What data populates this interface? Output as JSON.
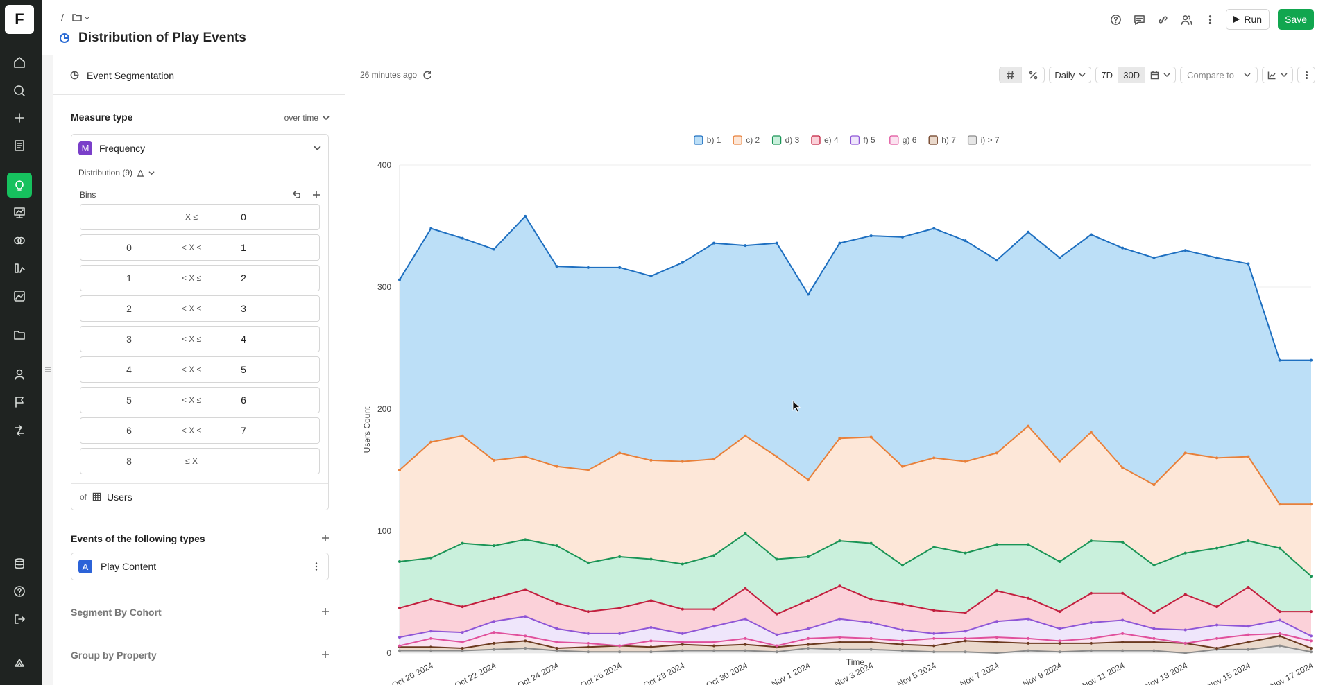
{
  "rail": {
    "logo": "F",
    "items": [
      {
        "icon": "home-icon"
      },
      {
        "icon": "search-icon"
      },
      {
        "icon": "plus-icon"
      },
      {
        "icon": "notebook-icon"
      },
      {
        "icon": "lightbulb-icon",
        "active": true
      },
      {
        "icon": "dashboard-icon"
      },
      {
        "icon": "overlap-circles-icon"
      },
      {
        "icon": "metrics-icon"
      },
      {
        "icon": "image-chart-icon"
      },
      {
        "icon": "folder-icon"
      },
      {
        "icon": "user-icon"
      },
      {
        "icon": "flag-icon"
      },
      {
        "icon": "experiment-icon"
      },
      {
        "icon": "database-icon"
      },
      {
        "icon": "help-icon"
      },
      {
        "icon": "logout-icon"
      },
      {
        "icon": "logo-mark-icon"
      }
    ]
  },
  "header": {
    "breadcrumb_sep": "/",
    "title": "Distribution of Play Events",
    "run_label": "Run",
    "save_label": "Save"
  },
  "panel": {
    "analysis_type": "Event Segmentation",
    "measure_type_label": "Measure type",
    "measure_mode": "over time",
    "measure_badge": "M",
    "measure": "Frequency",
    "distribution_label": "Distribution (9)",
    "bins_label": "Bins",
    "bins": [
      {
        "lo": "",
        "op": "X ≤",
        "hi": "0"
      },
      {
        "lo": "0",
        "op": "< X ≤",
        "hi": "1"
      },
      {
        "lo": "1",
        "op": "< X ≤",
        "hi": "2"
      },
      {
        "lo": "2",
        "op": "< X ≤",
        "hi": "3"
      },
      {
        "lo": "3",
        "op": "< X ≤",
        "hi": "4"
      },
      {
        "lo": "4",
        "op": "< X ≤",
        "hi": "5"
      },
      {
        "lo": "5",
        "op": "< X ≤",
        "hi": "6"
      },
      {
        "lo": "6",
        "op": "< X ≤",
        "hi": "7"
      },
      {
        "lo": "8",
        "op": "≤ X",
        "hi": ""
      }
    ],
    "of_label": "of",
    "of_entity": "Users",
    "events_title": "Events of the following types",
    "event_badge": "A",
    "event_name": "Play Content",
    "segment_title": "Segment By Cohort",
    "group_title": "Group by Property"
  },
  "main": {
    "updated": "26 minutes ago",
    "interval": "Daily",
    "range_7d": "7D",
    "range_30d": "30D",
    "compare": "Compare to"
  },
  "chart_data": {
    "type": "area",
    "stacked": true,
    "x_label": "Time",
    "y_label": "Users Count",
    "ylim": [
      0,
      400
    ],
    "yticks": [
      0,
      100,
      200,
      300,
      400
    ],
    "x": [
      "Oct 19 2024",
      "Oct 20 2024",
      "Oct 21 2024",
      "Oct 22 2024",
      "Oct 23 2024",
      "Oct 24 2024",
      "Oct 25 2024",
      "Oct 26 2024",
      "Oct 27 2024",
      "Oct 28 2024",
      "Oct 29 2024",
      "Oct 30 2024",
      "Oct 31 2024",
      "Nov 1 2024",
      "Nov 2 2024",
      "Nov 3 2024",
      "Nov 4 2024",
      "Nov 5 2024",
      "Nov 6 2024",
      "Nov 7 2024",
      "Nov 8 2024",
      "Nov 9 2024",
      "Nov 10 2024",
      "Nov 11 2024",
      "Nov 12 2024",
      "Nov 13 2024",
      "Nov 14 2024",
      "Nov 15 2024",
      "Nov 16 2024",
      "Nov 17 2024"
    ],
    "x_tick_labels": [
      "Oct 20 2024",
      "Oct 22 2024",
      "Oct 24 2024",
      "Oct 26 2024",
      "Oct 28 2024",
      "Oct 30 2024",
      "Nov 1 2024",
      "Nov 3 2024",
      "Nov 5 2024",
      "Nov 7 2024",
      "Nov 9 2024",
      "Nov 11 2024",
      "Nov 13 2024",
      "Nov 15 2024",
      "Nov 17 2024"
    ],
    "legend_position": "top",
    "series": [
      {
        "name": "i) > 7",
        "color": "#8a8a8a",
        "fill": "#e7e7e7",
        "values": [
          2,
          2,
          2,
          3,
          4,
          2,
          1,
          1,
          1,
          2,
          2,
          2,
          1,
          4,
          3,
          3,
          2,
          1,
          1,
          0,
          2,
          1,
          2,
          2,
          2,
          0,
          3,
          3,
          6,
          1
        ]
      },
      {
        "name": "h) 7",
        "color": "#6b3a1f",
        "fill": "#ead9cc",
        "values": [
          5,
          5,
          4,
          8,
          10,
          4,
          5,
          6,
          5,
          7,
          6,
          7,
          5,
          7,
          9,
          9,
          7,
          6,
          10,
          9,
          8,
          8,
          8,
          9,
          9,
          8,
          4,
          9,
          14,
          4
        ]
      },
      {
        "name": "g) 6",
        "color": "#e0509c",
        "fill": "#fbe3f0",
        "values": [
          6,
          12,
          9,
          17,
          14,
          9,
          8,
          6,
          10,
          9,
          9,
          12,
          6,
          12,
          13,
          12,
          10,
          12,
          12,
          13,
          12,
          10,
          12,
          16,
          12,
          8,
          12,
          15,
          16,
          10
        ]
      },
      {
        "name": "f) 5",
        "color": "#8e55d6",
        "fill": "#efe6fb",
        "values": [
          13,
          18,
          17,
          26,
          30,
          20,
          16,
          16,
          21,
          16,
          22,
          28,
          15,
          20,
          28,
          25,
          19,
          16,
          18,
          26,
          28,
          20,
          25,
          27,
          20,
          19,
          23,
          22,
          27,
          14
        ]
      },
      {
        "name": "e) 4",
        "color": "#c21f3e",
        "fill": "#fbd1d9",
        "values": [
          37,
          44,
          38,
          45,
          52,
          41,
          34,
          37,
          43,
          36,
          36,
          53,
          32,
          43,
          55,
          44,
          40,
          35,
          33,
          51,
          45,
          34,
          49,
          49,
          33,
          48,
          38,
          54,
          34,
          34
        ]
      },
      {
        "name": "d) 3",
        "color": "#1a9456",
        "fill": "#c9f0dc",
        "values": [
          75,
          78,
          90,
          88,
          93,
          88,
          74,
          79,
          77,
          73,
          80,
          98,
          77,
          79,
          92,
          90,
          72,
          87,
          82,
          89,
          89,
          75,
          92,
          91,
          72,
          82,
          86,
          92,
          86,
          63
        ]
      },
      {
        "name": "c) 2",
        "color": "#e8803a",
        "fill": "#fde7d8",
        "values": [
          150,
          173,
          178,
          158,
          161,
          153,
          150,
          164,
          158,
          157,
          159,
          178,
          161,
          142,
          176,
          177,
          153,
          160,
          157,
          164,
          186,
          157,
          181,
          152,
          138,
          164,
          160,
          161,
          122,
          122
        ]
      },
      {
        "name": "b) 1",
        "color": "#1e6fc0",
        "fill": "#bcdff7",
        "values": [
          306,
          348,
          340,
          331,
          358,
          317,
          316,
          316,
          309,
          320,
          336,
          334,
          336,
          294,
          336,
          342,
          341,
          348,
          338,
          322,
          345,
          324,
          343,
          332,
          324,
          330,
          324,
          319,
          240,
          240
        ]
      }
    ]
  }
}
